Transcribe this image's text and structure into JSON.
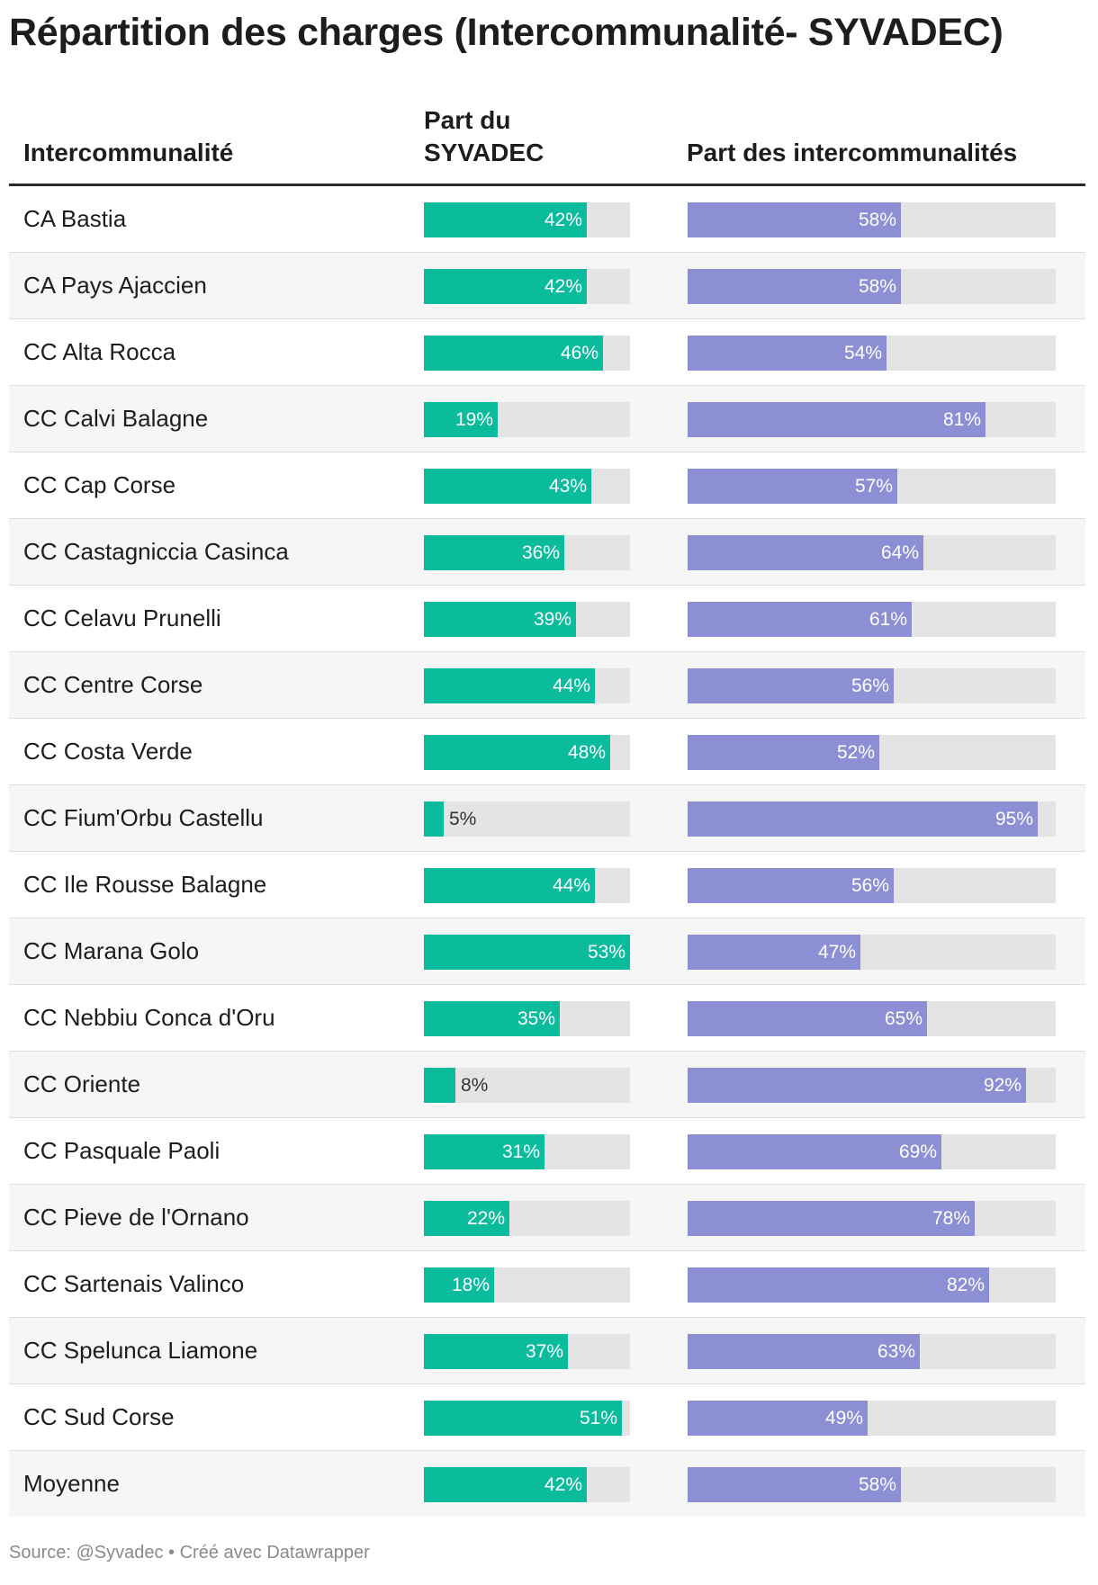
{
  "title": "Répartition des charges (Intercommunalité- SYVADEC)",
  "columns": {
    "name": "Intercommunalité",
    "syvadec": "Part du SYVADEC",
    "interco": "Part des intercommunalités"
  },
  "colors": {
    "syvadec": "#0abb9c",
    "interco": "#8c8fd4",
    "track": "#e4e4e4"
  },
  "footer": "Source: @Syvadec • Créé avec Datawrapper",
  "chart_data": {
    "type": "table",
    "title": "Répartition des charges (Intercommunalité- SYVADEC)",
    "columns": [
      "Intercommunalité",
      "Part du SYVADEC",
      "Part des intercommunalités"
    ],
    "syvadec_max": 53,
    "interco_max": 100,
    "rows": [
      {
        "name": "CA Bastia",
        "syvadec": 42,
        "interco": 58
      },
      {
        "name": "CA Pays Ajaccien",
        "syvadec": 42,
        "interco": 58
      },
      {
        "name": "CC Alta Rocca",
        "syvadec": 46,
        "interco": 54
      },
      {
        "name": "CC Calvi Balagne",
        "syvadec": 19,
        "interco": 81
      },
      {
        "name": "CC Cap Corse",
        "syvadec": 43,
        "interco": 57
      },
      {
        "name": "CC Castagniccia Casinca",
        "syvadec": 36,
        "interco": 64
      },
      {
        "name": "CC Celavu Prunelli",
        "syvadec": 39,
        "interco": 61
      },
      {
        "name": "CC Centre Corse",
        "syvadec": 44,
        "interco": 56
      },
      {
        "name": "CC Costa Verde",
        "syvadec": 48,
        "interco": 52
      },
      {
        "name": "CC Fium'Orbu Castellu",
        "syvadec": 5,
        "interco": 95
      },
      {
        "name": "CC Ile Rousse Balagne",
        "syvadec": 44,
        "interco": 56
      },
      {
        "name": "CC Marana Golo",
        "syvadec": 53,
        "interco": 47
      },
      {
        "name": "CC Nebbiu Conca d'Oru",
        "syvadec": 35,
        "interco": 65
      },
      {
        "name": "CC Oriente",
        "syvadec": 8,
        "interco": 92
      },
      {
        "name": "CC Pasquale Paoli",
        "syvadec": 31,
        "interco": 69
      },
      {
        "name": "CC Pieve de l'Ornano",
        "syvadec": 22,
        "interco": 78
      },
      {
        "name": "CC Sartenais Valinco",
        "syvadec": 18,
        "interco": 82
      },
      {
        "name": "CC Spelunca Liamone",
        "syvadec": 37,
        "interco": 63
      },
      {
        "name": "CC Sud Corse",
        "syvadec": 51,
        "interco": 49
      },
      {
        "name": "Moyenne",
        "syvadec": 42,
        "interco": 58
      }
    ]
  }
}
